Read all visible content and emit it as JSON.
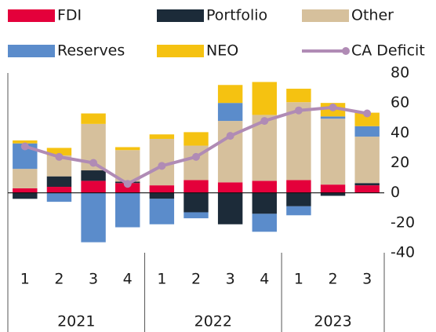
{
  "chart_data": {
    "type": "bar",
    "categories": [
      "1",
      "2",
      "3",
      "4",
      "1",
      "2",
      "3",
      "4",
      "1",
      "2",
      "3"
    ],
    "x_groups": [
      {
        "label": "2021",
        "count": 4
      },
      {
        "label": "2022",
        "count": 4
      },
      {
        "label": "2023",
        "count": 3
      }
    ],
    "series": [
      {
        "name": "FDI",
        "type": "bar",
        "color": "#e4003b",
        "values": [
          3,
          4,
          8,
          6.5,
          5,
          8.5,
          7,
          8,
          8.5,
          5.5,
          5
        ]
      },
      {
        "name": "Portfolio",
        "type": "bar",
        "color": "#1c2b39",
        "values": [
          -4,
          7,
          7,
          1,
          -4,
          -13,
          -21,
          -14,
          -9,
          -2,
          1.5
        ]
      },
      {
        "name": "Other",
        "type": "bar",
        "color": "#d6c09c",
        "values": [
          13,
          14,
          31,
          21,
          31,
          23,
          41,
          44,
          52,
          44,
          31
        ]
      },
      {
        "name": "Reserves",
        "type": "bar",
        "color": "#5b8ccb",
        "values": [
          17,
          -6,
          -33,
          -23,
          -17,
          -4,
          12,
          -12,
          -6,
          1.5,
          7
        ]
      },
      {
        "name": "NEO",
        "type": "bar",
        "color": "#f5c211",
        "values": [
          2,
          5,
          7,
          2,
          3,
          9,
          12,
          22,
          9,
          9,
          9
        ]
      },
      {
        "name": "CA Deficit",
        "type": "line",
        "color": "#b08bb5",
        "values": [
          31,
          24,
          20,
          6,
          18,
          24,
          38,
          48,
          55,
          57,
          53
        ]
      }
    ],
    "ylim": [
      -40,
      80
    ],
    "yticks": [
      -40,
      -20,
      0,
      20,
      40,
      60,
      80
    ]
  }
}
